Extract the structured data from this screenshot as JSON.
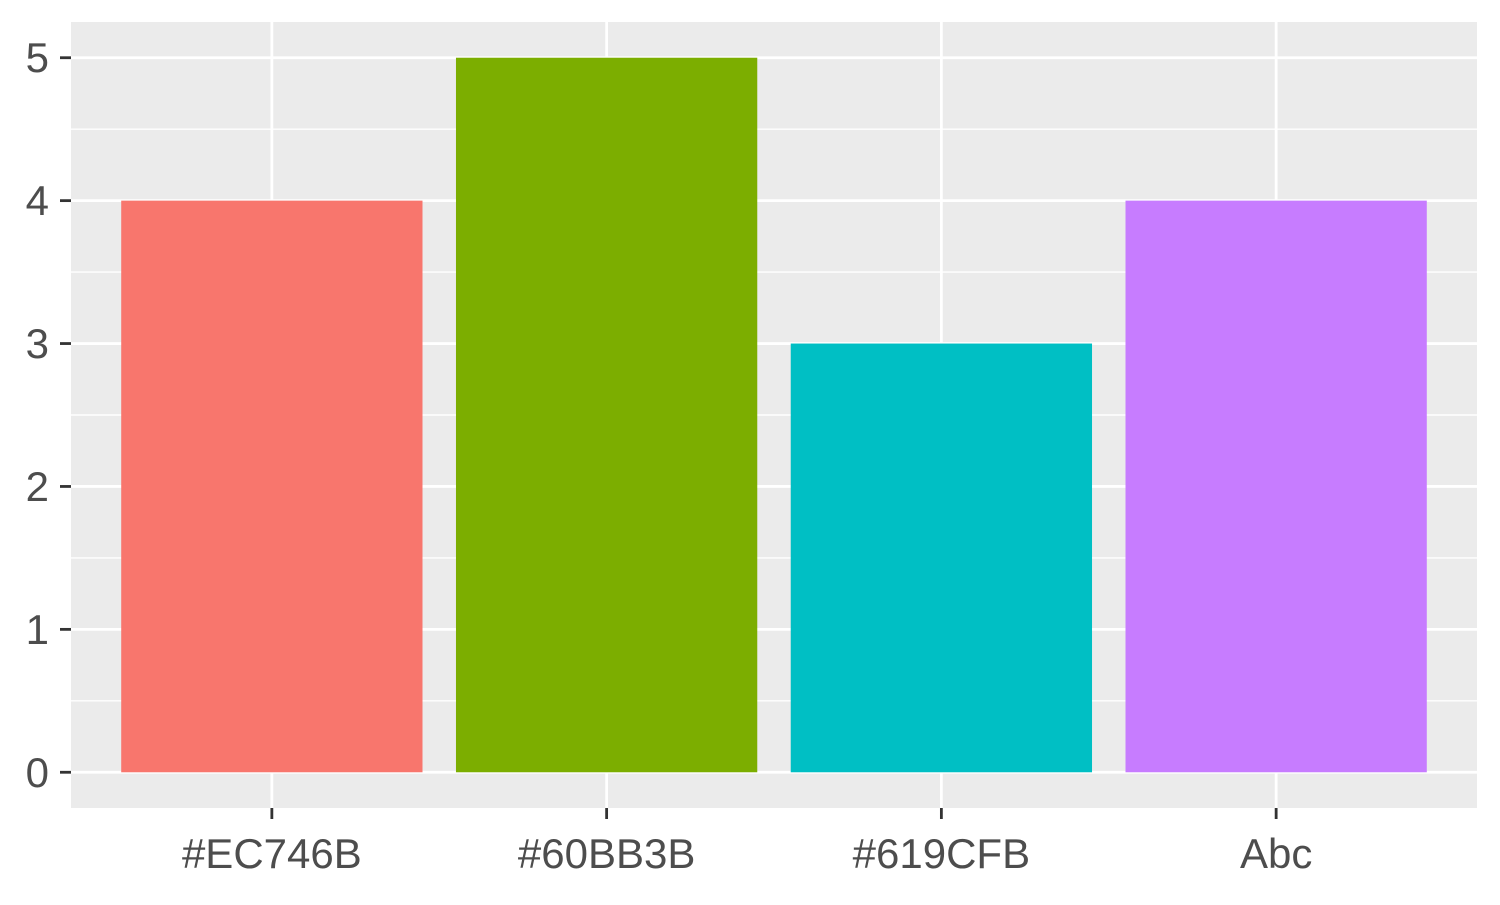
{
  "chart_data": {
    "type": "bar",
    "categories": [
      "#EC746B",
      "#60BB3B",
      "#619CFB",
      "Abc"
    ],
    "values": [
      4,
      5,
      3,
      4
    ],
    "bar_colors": [
      "#F8766D",
      "#7CAE00",
      "#00BFC4",
      "#C77CFF"
    ],
    "title": "",
    "xlabel": "",
    "ylabel": "",
    "ylim": [
      -0.25,
      5.25
    ],
    "yticks": [
      0,
      1,
      2,
      3,
      4,
      5
    ],
    "y_tick_labels": [
      "0",
      "1",
      "2",
      "3",
      "4",
      "5"
    ],
    "grid": true,
    "legend": "none",
    "panel_background": "#EBEBEB",
    "grid_color": "#FFFFFF",
    "tick_color": "#333333",
    "text_color": "#4D4D4D"
  }
}
